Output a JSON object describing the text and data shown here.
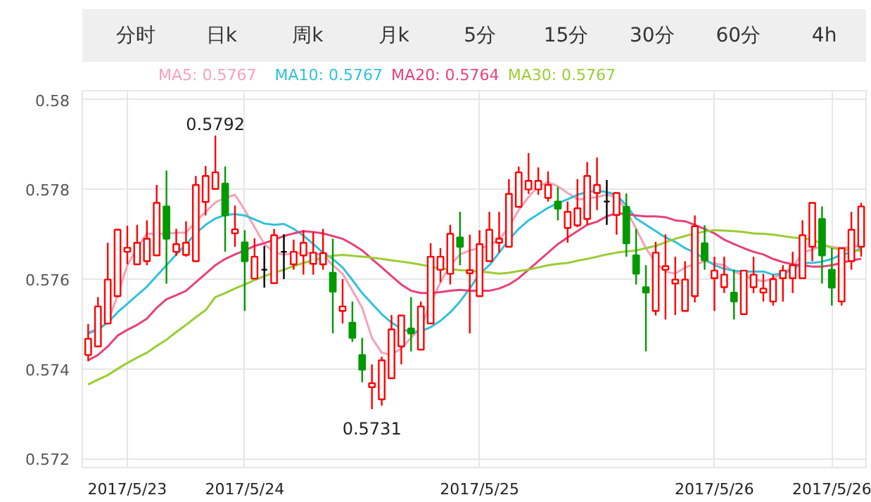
{
  "chart_data": {
    "type": "candlestick",
    "annotations": [
      "分时",
      "日k",
      "周k",
      "月k",
      "5分",
      "15分",
      "30分",
      "60分",
      "4h",
      {
        "text": "0.5792",
        "y": 0.5792
      },
      {
        "text": "0.5731",
        "y": 0.5731
      }
    ],
    "categories": [
      null,
      null,
      null,
      null,
      "2017/5/23",
      null,
      null,
      null,
      null,
      null,
      null,
      null,
      null,
      null,
      null,
      null,
      "2017/5/24",
      null,
      null,
      null,
      null,
      null,
      null,
      null,
      null,
      null,
      null,
      null,
      null,
      null,
      null,
      null,
      null,
      null,
      null,
      null,
      null,
      null,
      null,
      null,
      "2017/5/25",
      null,
      null,
      null,
      null,
      null,
      null,
      null,
      null,
      null,
      null,
      null,
      null,
      null,
      null,
      null,
      null,
      null,
      null,
      null,
      null,
      null,
      null,
      null,
      "2017/5/26",
      null,
      null,
      null,
      null,
      null,
      null,
      null,
      null,
      null,
      null,
      null,
      "2017/5/26",
      null,
      null,
      null
    ],
    "ohlc": [
      [
        0.57431,
        0.575,
        0.57417,
        0.57467
      ],
      [
        0.5745,
        0.5756,
        0.5745,
        0.57539
      ],
      [
        0.57501,
        0.57681,
        0.57501,
        0.57599
      ],
      [
        0.57562,
        0.57712,
        0.5756,
        0.5771
      ],
      [
        0.57661,
        0.57719,
        0.57633,
        0.5767
      ],
      [
        0.57633,
        0.57721,
        0.57633,
        0.57681
      ],
      [
        0.5764,
        0.57731,
        0.57631,
        0.5769
      ],
      [
        0.57653,
        0.5781,
        0.57653,
        0.5777
      ],
      [
        0.57762,
        0.57842,
        0.5759,
        0.5769
      ],
      [
        0.57661,
        0.57712,
        0.57652,
        0.57678
      ],
      [
        0.57654,
        0.57729,
        0.5765,
        0.57681
      ],
      [
        0.5764,
        0.5783,
        0.5764,
        0.5781
      ],
      [
        0.57772,
        0.57852,
        0.57742,
        0.5783
      ],
      [
        0.57801,
        0.5792,
        0.57801,
        0.57838
      ],
      [
        0.57813,
        0.57851,
        0.57661,
        0.57742
      ],
      [
        0.57702,
        0.57764,
        0.57672,
        0.57711
      ],
      [
        0.57682,
        0.57709,
        0.57529,
        0.5764
      ],
      [
        0.57601,
        0.57691,
        0.57601,
        0.5765
      ],
      [
        0.57621,
        0.57674,
        0.57581,
        0.57621
      ],
      [
        0.57591,
        0.57712,
        0.57591,
        0.57698
      ],
      [
        0.57661,
        0.577,
        0.576,
        0.57661
      ],
      [
        0.57633,
        0.57688,
        0.57621,
        0.57661
      ],
      [
        0.57653,
        0.57709,
        0.5761,
        0.57681
      ],
      [
        0.57634,
        0.57704,
        0.5761,
        0.57659
      ],
      [
        0.57633,
        0.57712,
        0.57621,
        0.57658
      ],
      [
        0.57614,
        0.5769,
        0.57479,
        0.57572
      ],
      [
        0.57529,
        0.576,
        0.57501,
        0.57539
      ],
      [
        0.57503,
        0.5755,
        0.5746,
        0.57469
      ],
      [
        0.57431,
        0.57469,
        0.5737,
        0.57398
      ],
      [
        0.57359,
        0.5741,
        0.5731,
        0.57368
      ],
      [
        0.57332,
        0.57427,
        0.57318,
        0.57419
      ],
      [
        0.57379,
        0.5752,
        0.57379,
        0.57488
      ],
      [
        0.5745,
        0.57519,
        0.5741,
        0.57519
      ],
      [
        0.5749,
        0.5756,
        0.57439,
        0.57479
      ],
      [
        0.57443,
        0.5755,
        0.57443,
        0.57539
      ],
      [
        0.57501,
        0.5768,
        0.57501,
        0.5765
      ],
      [
        0.57621,
        0.57669,
        0.57593,
        0.5765
      ],
      [
        0.57612,
        0.57721,
        0.57588,
        0.57701
      ],
      [
        0.57693,
        0.5775,
        0.57631,
        0.57672
      ],
      [
        0.57613,
        0.57699,
        0.57479,
        0.5762
      ],
      [
        0.57562,
        0.57709,
        0.57562,
        0.57678
      ],
      [
        0.5764,
        0.5775,
        0.5764,
        0.5771
      ],
      [
        0.57681,
        0.5775,
        0.57659,
        0.5769
      ],
      [
        0.57672,
        0.57823,
        0.57672,
        0.5779
      ],
      [
        0.57761,
        0.57851,
        0.57761,
        0.57838
      ],
      [
        0.578,
        0.57881,
        0.5779,
        0.57819
      ],
      [
        0.578,
        0.57849,
        0.57788,
        0.57819
      ],
      [
        0.57781,
        0.5784,
        0.57773,
        0.5781
      ],
      [
        0.57773,
        0.57805,
        0.57731,
        0.57757
      ],
      [
        0.57714,
        0.57773,
        0.57681,
        0.5775
      ],
      [
        0.5772,
        0.57823,
        0.57716,
        0.57758
      ],
      [
        0.57734,
        0.57861,
        0.57721,
        0.5783
      ],
      [
        0.57792,
        0.57871,
        0.57754,
        0.5781
      ],
      [
        0.57773,
        0.57821,
        0.57721,
        0.57773
      ],
      [
        0.57743,
        0.57792,
        0.57699,
        0.57792
      ],
      [
        0.57761,
        0.57791,
        0.5765,
        0.5768
      ],
      [
        0.57653,
        0.57712,
        0.57588,
        0.57612
      ],
      [
        0.57582,
        0.57631,
        0.57439,
        0.5757
      ],
      [
        0.57529,
        0.57683,
        0.57519,
        0.57659
      ],
      [
        0.57621,
        0.577,
        0.5751,
        0.57629
      ],
      [
        0.5759,
        0.5765,
        0.5752,
        0.57599
      ],
      [
        0.57529,
        0.5764,
        0.57529,
        0.57599
      ],
      [
        0.57562,
        0.57742,
        0.57548,
        0.57718
      ],
      [
        0.5768,
        0.5772,
        0.57621,
        0.57642
      ],
      [
        0.57602,
        0.5765,
        0.57529,
        0.57619
      ],
      [
        0.57582,
        0.5765,
        0.57569,
        0.5761
      ],
      [
        0.5757,
        0.57621,
        0.5751,
        0.5755
      ],
      [
        0.57522,
        0.57619,
        0.57522,
        0.57619
      ],
      [
        0.57582,
        0.5765,
        0.57569,
        0.5761
      ],
      [
        0.5757,
        0.57612,
        0.5755,
        0.57579
      ],
      [
        0.5755,
        0.5761,
        0.57541,
        0.576
      ],
      [
        0.57602,
        0.57631,
        0.5755,
        0.57619
      ],
      [
        0.57602,
        0.57661,
        0.57569,
        0.57631
      ],
      [
        0.57602,
        0.57731,
        0.57602,
        0.57698
      ],
      [
        0.57672,
        0.5777,
        0.5764,
        0.5777
      ],
      [
        0.57734,
        0.57762,
        0.5759,
        0.57653
      ],
      [
        0.57621,
        0.57669,
        0.57541,
        0.57581
      ],
      [
        0.5755,
        0.57669,
        0.57541,
        0.57669
      ],
      [
        0.5764,
        0.5775,
        0.57621,
        0.5771
      ],
      [
        0.57672,
        0.5777,
        0.5765,
        0.57762
      ]
    ],
    "colors": [
      "#ff0000",
      "#ff0000",
      "#ff0000",
      "#ff0000",
      "#ff0000",
      "#ff0000",
      "#ff0000",
      "#ff0000",
      "#009900",
      "#ff0000",
      "#ff0000",
      "#ff0000",
      "#ff0000",
      "#ff0000",
      "#009900",
      "#ff0000",
      "#009900",
      "#ff0000",
      "#000000",
      "#ff0000",
      "#000000",
      "#ff0000",
      "#ff0000",
      "#ff0000",
      "#ff0000",
      "#009900",
      "#ff0000",
      "#009900",
      "#009900",
      "#ff0000",
      "#ff0000",
      "#ff0000",
      "#ff0000",
      "#009900",
      "#ff0000",
      "#ff0000",
      "#ff0000",
      "#ff0000",
      "#009900",
      "#ff0000",
      "#ff0000",
      "#ff0000",
      "#ff0000",
      "#ff0000",
      "#ff0000",
      "#ff0000",
      "#ff0000",
      "#ff0000",
      "#009900",
      "#ff0000",
      "#ff0000",
      "#ff0000",
      "#ff0000",
      "#000000",
      "#ff0000",
      "#009900",
      "#009900",
      "#009900",
      "#ff0000",
      "#ff0000",
      "#ff0000",
      "#ff0000",
      "#ff0000",
      "#009900",
      "#ff0000",
      "#ff0000",
      "#009900",
      "#ff0000",
      "#ff0000",
      "#ff0000",
      "#ff0000",
      "#ff0000",
      "#ff0000",
      "#ff0000",
      "#ff0000",
      "#009900",
      "#009900",
      "#ff0000",
      "#ff0000",
      "#ff0000"
    ],
    "series": [
      {
        "name": "MA5: 0.5767",
        "type": "line",
        "color": "#f7a1b9",
        "values": [
          0.57481,
          0.5749,
          0.57503,
          0.57564,
          0.57631,
          0.57669,
          0.57702,
          0.577,
          0.57702,
          0.57703,
          0.57704,
          0.57728,
          0.5775,
          0.57771,
          0.57781,
          0.57788,
          0.57754,
          0.57716,
          0.57678,
          0.57659,
          0.57655,
          0.57657,
          0.57659,
          0.57657,
          0.57655,
          0.57631,
          0.57612,
          0.57575,
          0.57536,
          0.57469,
          0.57436,
          0.57431,
          0.57446,
          0.57469,
          0.57493,
          0.57545,
          0.57593,
          0.57631,
          0.57655,
          0.57664,
          0.57669,
          0.57674,
          0.57688,
          0.57716,
          0.57754,
          0.57783,
          0.57807,
          0.57816,
          0.57807,
          0.57792,
          0.57778,
          0.5778,
          0.57783,
          0.57788,
          0.57783,
          0.57754,
          0.57712,
          0.57669,
          0.57636,
          0.57617,
          0.57612,
          0.57626,
          0.57633,
          0.57639,
          0.57635,
          0.57631,
          0.57617,
          0.57608,
          0.576,
          0.57595,
          0.57602,
          0.57614,
          0.57626,
          0.57659,
          0.57666,
          0.57674,
          0.57672,
          0.57669,
          0.57672,
          0.57674
        ]
      },
      {
        "name": "MA10: 0.5767",
        "type": "line",
        "color": "#2fc1dd",
        "values": [
          0.57479,
          0.57487,
          0.57503,
          0.57526,
          0.57545,
          0.57564,
          0.57583,
          0.57607,
          0.57631,
          0.57655,
          0.57678,
          0.57702,
          0.57721,
          0.57735,
          0.57743,
          0.57745,
          0.57742,
          0.57733,
          0.57724,
          0.57721,
          0.57723,
          0.57712,
          0.57697,
          0.57678,
          0.57659,
          0.57645,
          0.57626,
          0.57598,
          0.57569,
          0.57545,
          0.57522,
          0.57503,
          0.5749,
          0.57481,
          0.57484,
          0.57493,
          0.57507,
          0.57526,
          0.5755,
          0.57579,
          0.57612,
          0.57631,
          0.57659,
          0.57688,
          0.57712,
          0.57731,
          0.57745,
          0.57759,
          0.57769,
          0.57778,
          0.57788,
          0.57794,
          0.57797,
          0.57794,
          0.57788,
          0.57764,
          0.57735,
          0.57721,
          0.57707,
          0.57693,
          0.57683,
          0.57669,
          0.57659,
          0.57645,
          0.57631,
          0.57623,
          0.57619,
          0.57617,
          0.57617,
          0.57617,
          0.5761,
          0.57612,
          0.57621,
          0.57636,
          0.57636,
          0.57639,
          0.57645,
          0.57655,
          0.57659,
          0.57669
        ]
      },
      {
        "name": "MA20: 0.5764",
        "type": "line",
        "color": "#e8407a",
        "values": [
          0.57419,
          0.57431,
          0.5745,
          0.57474,
          0.57487,
          0.57498,
          0.57512,
          0.57536,
          0.57555,
          0.57564,
          0.57574,
          0.57593,
          0.57612,
          0.57631,
          0.57645,
          0.57655,
          0.57664,
          0.57674,
          0.5768,
          0.57688,
          0.57696,
          0.57702,
          0.57707,
          0.57705,
          0.57702,
          0.57696,
          0.5769,
          0.57678,
          0.57664,
          0.57645,
          0.57626,
          0.57607,
          0.57588,
          0.57574,
          0.57569,
          0.57569,
          0.57571,
          0.57574,
          0.57576,
          0.57574,
          0.57574,
          0.57574,
          0.57579,
          0.57588,
          0.57602,
          0.57621,
          0.5764,
          0.57659,
          0.57678,
          0.57693,
          0.57707,
          0.57721,
          0.57728,
          0.5774,
          0.57747,
          0.57745,
          0.57742,
          0.5774,
          0.5774,
          0.57738,
          0.57731,
          0.57729,
          0.57721,
          0.57712,
          0.57702,
          0.57688,
          0.57678,
          0.57669,
          0.57661,
          0.57655,
          0.57645,
          0.57638,
          0.57633,
          0.57631,
          0.57628,
          0.57628,
          0.57631,
          0.57636,
          0.57642,
          0.57645
        ]
      },
      {
        "name": "MA30: 0.5767",
        "type": "line",
        "color": "#9acd32",
        "values": [
          0.57365,
          0.57376,
          0.57386,
          0.574,
          0.57413,
          0.57425,
          0.57436,
          0.57451,
          0.57465,
          0.57482,
          0.57498,
          0.57515,
          0.57531,
          0.5756,
          0.57569,
          0.57579,
          0.57588,
          0.57598,
          0.57607,
          0.57614,
          0.57621,
          0.57629,
          0.57636,
          0.57642,
          0.57648,
          0.57652,
          0.57654,
          0.57652,
          0.5765,
          0.57648,
          0.57645,
          0.57642,
          0.57639,
          0.57636,
          0.57632,
          0.57628,
          0.57623,
          0.57622,
          0.5762,
          0.57619,
          0.57617,
          0.57615,
          0.57612,
          0.57614,
          0.57618,
          0.57621,
          0.57626,
          0.57631,
          0.57634,
          0.57636,
          0.57641,
          0.57645,
          0.5765,
          0.57655,
          0.57659,
          0.57662,
          0.57664,
          0.57669,
          0.57674,
          0.57682,
          0.5769,
          0.57696,
          0.57702,
          0.57706,
          0.57709,
          0.57708,
          0.57707,
          0.57705,
          0.57702,
          0.57701,
          0.57699,
          0.57696,
          0.57693,
          0.57691,
          0.57688,
          0.57679,
          0.57669,
          0.57667,
          0.57664,
          0.57663
        ]
      }
    ],
    "ylim": [
      0.5718,
      0.5802
    ],
    "yticks": [
      0.572,
      0.574,
      0.576,
      0.578,
      0.58
    ],
    "grid": true,
    "legend": "top"
  }
}
